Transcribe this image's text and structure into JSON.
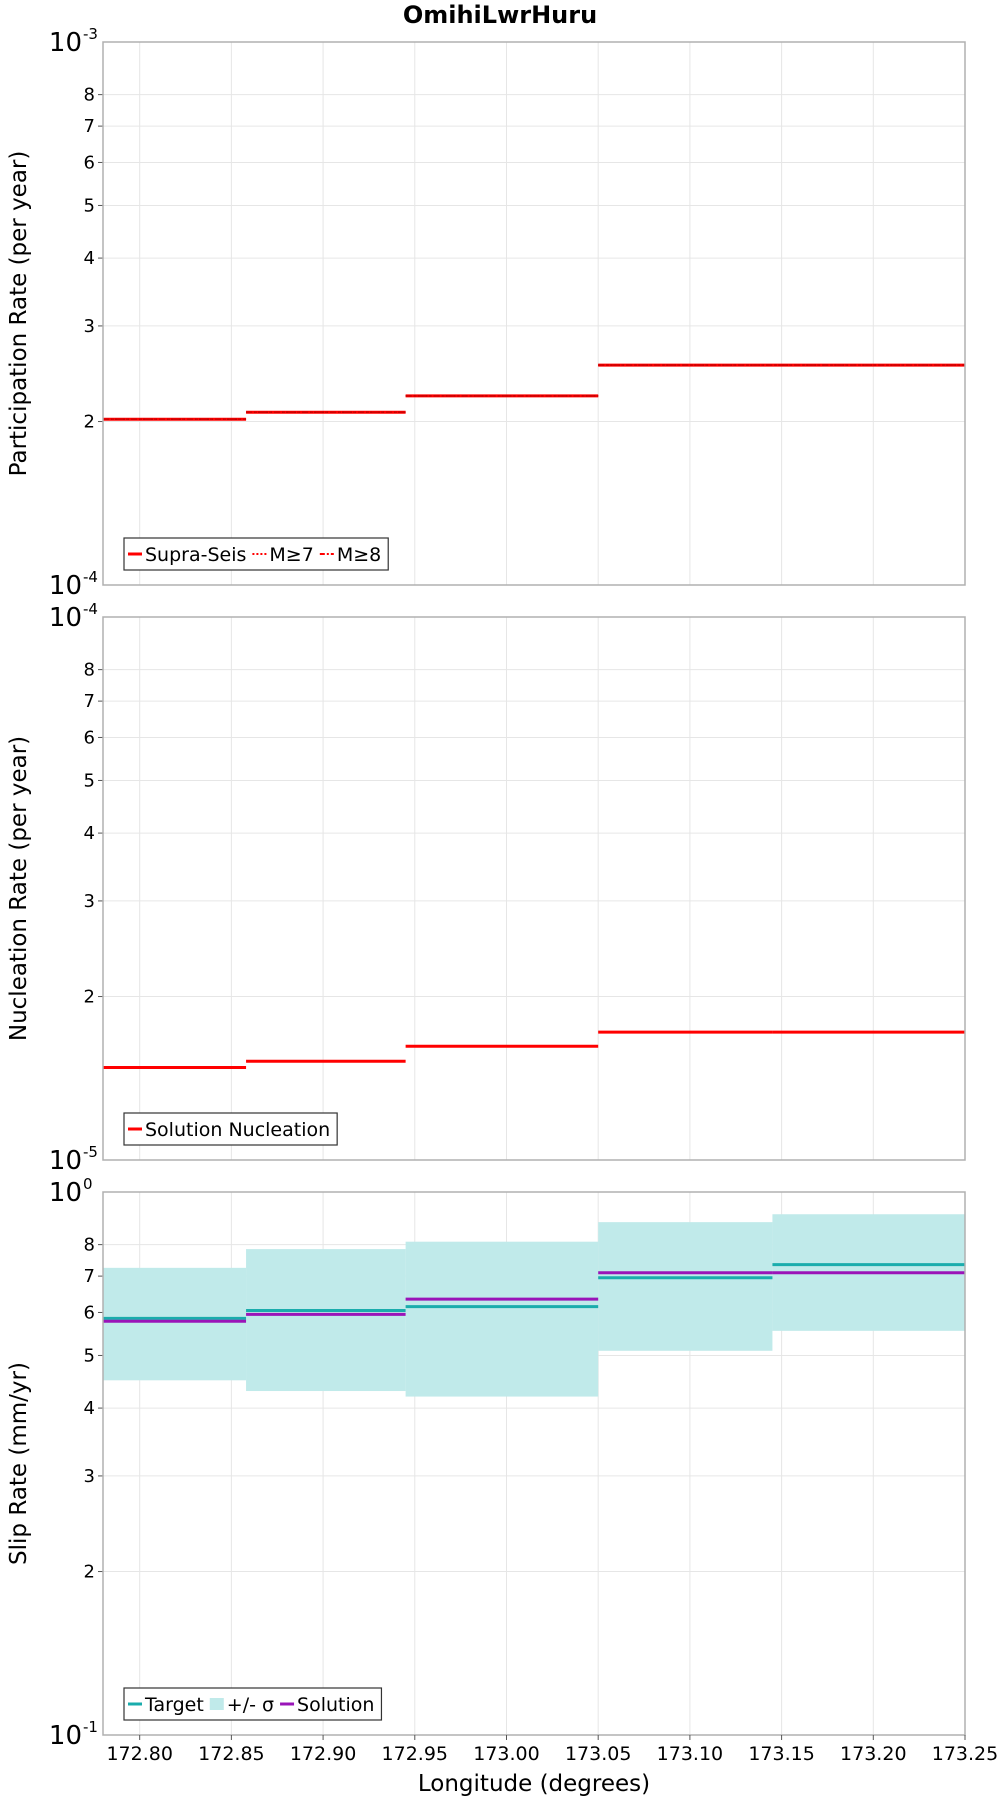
{
  "title": "OmihiLwrHuru",
  "colors": {
    "red": "#ff0000",
    "target": "#1aacac",
    "sigma_fill": "#c0eaea",
    "solution": "#9a14b8",
    "grid": "#e6e6e6",
    "frame": "#b0b0b0"
  },
  "chart_data": [
    {
      "type": "line",
      "step": true,
      "ylabel": "Participation Rate (per year)",
      "yscale": "log",
      "ylim": [
        0.0001,
        0.001
      ],
      "xlim": [
        172.78,
        173.25
      ],
      "y_major_ticks": [
        {
          "base": "10",
          "exp": "-4"
        },
        {
          "base": "10",
          "exp": "-3"
        }
      ],
      "y_minor_ticks": [
        "2",
        "3",
        "4",
        "5",
        "6",
        "7",
        "8"
      ],
      "segments": [
        {
          "x0": 172.78,
          "x1": 172.858
        },
        {
          "x0": 172.858,
          "x1": 172.945
        },
        {
          "x0": 172.945,
          "x1": 173.05
        },
        {
          "x0": 173.05,
          "x1": 173.25
        }
      ],
      "series": [
        {
          "name": "Supra-Seis",
          "style": "solid",
          "values": [
            0.000202,
            0.000208,
            0.000223,
            0.000254
          ]
        },
        {
          "name": "M≥7",
          "style": "dotted",
          "values": [
            0.000202,
            0.000208,
            0.000223,
            0.000254
          ]
        },
        {
          "name": "M≥8",
          "style": "dashdot",
          "values": [
            0.000202,
            0.000208,
            0.000223,
            0.000254
          ]
        }
      ],
      "legend_position": "bottom-left"
    },
    {
      "type": "line",
      "step": true,
      "ylabel": "Nucleation Rate (per year)",
      "yscale": "log",
      "ylim": [
        1e-05,
        0.0001
      ],
      "xlim": [
        172.78,
        173.25
      ],
      "y_major_ticks": [
        {
          "base": "10",
          "exp": "-5"
        },
        {
          "base": "10",
          "exp": "-4"
        }
      ],
      "y_minor_ticks": [
        "2",
        "3",
        "4",
        "5",
        "6",
        "7",
        "8"
      ],
      "segments": [
        {
          "x0": 172.78,
          "x1": 172.858
        },
        {
          "x0": 172.858,
          "x1": 172.945
        },
        {
          "x0": 172.945,
          "x1": 173.05
        },
        {
          "x0": 173.05,
          "x1": 173.145
        },
        {
          "x0": 173.145,
          "x1": 173.25
        }
      ],
      "series": [
        {
          "name": "Solution Nucleation",
          "style": "solid",
          "values": [
            1.48e-05,
            1.52e-05,
            1.62e-05,
            1.72e-05,
            1.72e-05
          ]
        }
      ],
      "legend_position": "bottom-left"
    },
    {
      "type": "line",
      "step": true,
      "ylabel": "Slip Rate (mm/yr)",
      "xlabel": "Longitude (degrees)",
      "yscale": "log",
      "ylim": [
        0.1,
        1
      ],
      "xlim": [
        172.78,
        173.25
      ],
      "x_ticks": [
        "172.80",
        "172.85",
        "172.90",
        "172.95",
        "173.00",
        "173.05",
        "173.10",
        "173.15",
        "173.20",
        "173.25"
      ],
      "x_tick_values": [
        172.8,
        172.85,
        172.9,
        172.95,
        173.0,
        173.05,
        173.1,
        173.15,
        173.2,
        173.25
      ],
      "y_major_ticks": [
        {
          "base": "10",
          "exp": "-1"
        },
        {
          "base": "10",
          "exp": "0"
        }
      ],
      "y_minor_ticks": [
        "2",
        "3",
        "4",
        "5",
        "6",
        "7",
        "8"
      ],
      "segments": [
        {
          "x0": 172.78,
          "x1": 172.858
        },
        {
          "x0": 172.858,
          "x1": 172.945
        },
        {
          "x0": 172.945,
          "x1": 173.05
        },
        {
          "x0": 173.05,
          "x1": 173.145
        },
        {
          "x0": 173.145,
          "x1": 173.25
        }
      ],
      "series": [
        {
          "name": "Target",
          "style": "solid",
          "values": [
            0.585,
            0.605,
            0.615,
            0.695,
            0.735
          ]
        },
        {
          "name": "+/- σ",
          "style": "band",
          "lower": [
            0.45,
            0.43,
            0.42,
            0.51,
            0.555
          ],
          "upper": [
            0.725,
            0.785,
            0.81,
            0.88,
            0.91
          ]
        },
        {
          "name": "Solution",
          "style": "solid",
          "values": [
            0.578,
            0.595,
            0.635,
            0.71,
            0.71
          ]
        }
      ],
      "legend_position": "bottom-left"
    }
  ]
}
